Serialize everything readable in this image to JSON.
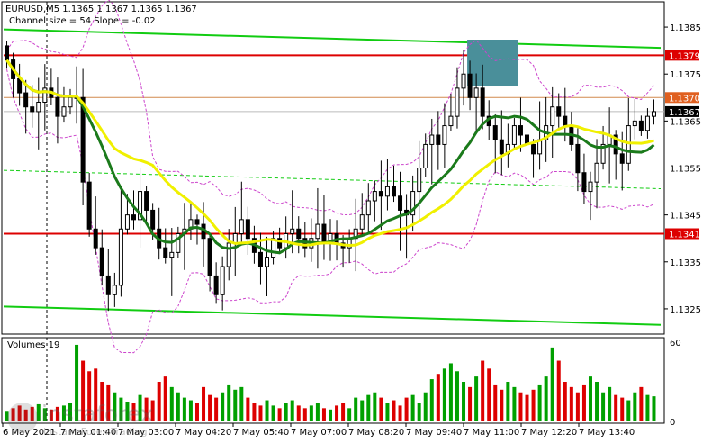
{
  "header": {
    "title": "EURUSD,M5  1.1365 1.1367 1.1365 1.1367",
    "subtitle": "Channel size = 54 Slope = -0.02"
  },
  "volume_label": "Volumes 19",
  "watermark": {
    "name": "instaforex",
    "tagline": "Instant Forex Trading"
  },
  "colors": {
    "candle": "#000000",
    "ma_green": "#1b7a1b",
    "ma_yellow": "#f0f000",
    "envelope": "#cc44cc",
    "channel": "#11cc11",
    "level_red": "#dd0000",
    "level_orange": "#d28a4e",
    "highlight_box": "#4a8f9a",
    "vol_up": "#00a000",
    "vol_down": "#dd0000"
  },
  "chart_data": {
    "type": "candlestick",
    "symbol": "EURUSD",
    "timeframe": "M5",
    "ylim": [
      1.132,
      1.139
    ],
    "y_ticks": [
      "1.1385",
      "1.1375",
      "1.1365",
      "1.1355",
      "1.1345",
      "1.1335",
      "1.1325"
    ],
    "x_labels": [
      "6 May 2021",
      "7 May 01:40",
      "7 May 03:00",
      "7 May 04:20",
      "7 May 05:40",
      "7 May 07:00",
      "7 May 08:20",
      "7 May 09:40",
      "7 May 11:00",
      "7 May 12:20",
      "7 May 13:40"
    ],
    "levels": [
      {
        "price": 1.1379,
        "label": "1.1379",
        "style": "red-thick"
      },
      {
        "price": 1.137,
        "label": "1.1370",
        "style": "orange"
      },
      {
        "price": 1.1367,
        "label": "1.1367",
        "style": "current"
      },
      {
        "price": 1.1341,
        "label": "1.1341",
        "style": "red-thick"
      }
    ],
    "closes": [
      1.1378,
      1.1374,
      1.1371,
      1.1368,
      1.1367,
      1.1369,
      1.1372,
      1.137,
      1.1366,
      1.1368,
      1.137,
      1.137,
      1.1352,
      1.1342,
      1.1338,
      1.1332,
      1.1328,
      1.133,
      1.1342,
      1.1345,
      1.1344,
      1.135,
      1.1346,
      1.1342,
      1.1338,
      1.1336,
      1.1337,
      1.1341,
      1.1342,
      1.1344,
      1.1343,
      1.134,
      1.1332,
      1.1328,
      1.1334,
      1.1339,
      1.1341,
      1.1344,
      1.134,
      1.1337,
      1.1334,
      1.1336,
      1.134,
      1.1338,
      1.1341,
      1.1342,
      1.134,
      1.1338,
      1.134,
      1.1343,
      1.1339,
      1.1341,
      1.1339,
      1.1338,
      1.134,
      1.1342,
      1.1345,
      1.1348,
      1.135,
      1.1349,
      1.1351,
      1.1349,
      1.1346,
      1.1345,
      1.135,
      1.1355,
      1.136,
      1.1362,
      1.136,
      1.1364,
      1.1366,
      1.1372,
      1.1375,
      1.137,
      1.1372,
      1.1366,
      1.1364,
      1.1361,
      1.1358,
      1.136,
      1.1364,
      1.1362,
      1.136,
      1.1358,
      1.1361,
      1.1364,
      1.1368,
      1.1366,
      1.1364,
      1.136,
      1.1354,
      1.135,
      1.1352,
      1.1356,
      1.136,
      1.1362,
      1.1358,
      1.1356,
      1.1364,
      1.1365,
      1.1363,
      1.1366,
      1.1367
    ],
    "volumes": [
      8,
      10,
      12,
      9,
      11,
      13,
      10,
      9,
      11,
      12,
      14,
      58,
      46,
      38,
      40,
      30,
      28,
      22,
      18,
      15,
      14,
      20,
      18,
      16,
      30,
      34,
      26,
      22,
      18,
      16,
      14,
      26,
      20,
      18,
      22,
      28,
      24,
      26,
      18,
      14,
      12,
      16,
      12,
      10,
      14,
      16,
      12,
      10,
      12,
      14,
      10,
      9,
      12,
      14,
      10,
      18,
      16,
      20,
      22,
      18,
      14,
      16,
      12,
      18,
      20,
      14,
      22,
      32,
      36,
      40,
      44,
      38,
      30,
      26,
      34,
      46,
      40,
      28,
      24,
      30,
      26,
      22,
      20,
      24,
      28,
      34,
      56,
      46,
      30,
      26,
      22,
      28,
      34,
      30,
      22,
      26,
      20,
      18,
      16,
      22,
      26,
      20,
      19
    ],
    "vol_ylim": [
      0,
      60
    ],
    "vol_ticks": [
      "60",
      "0"
    ]
  }
}
